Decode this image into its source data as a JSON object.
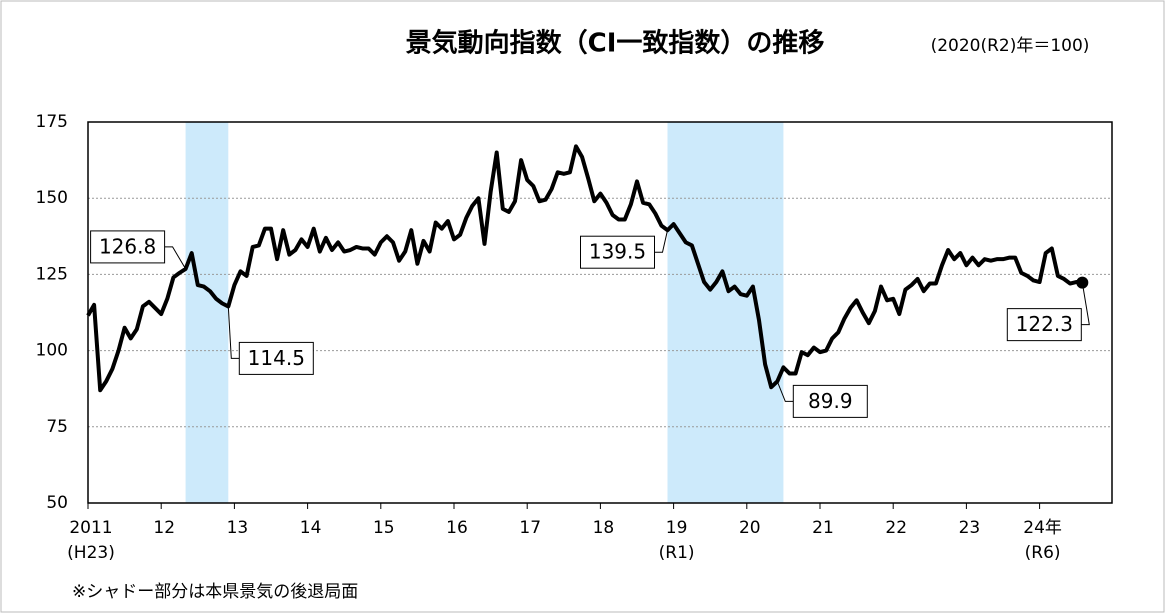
{
  "chart_data": {
    "type": "line",
    "title": "景気動向指数（CI一致指数）の推移",
    "subtitle": "(2020(R2)年＝100)",
    "note": "※シャドー部分は本県景気の後退局面",
    "categories": [
      "2011",
      null,
      null,
      null,
      null,
      null,
      null,
      null,
      null,
      null,
      null,
      null,
      "12",
      null,
      null,
      null,
      null,
      null,
      null,
      null,
      null,
      null,
      null,
      null,
      "13",
      null,
      null,
      null,
      null,
      null,
      null,
      null,
      null,
      null,
      null,
      null,
      "14",
      null,
      null,
      null,
      null,
      null,
      null,
      null,
      null,
      null,
      null,
      null,
      "15",
      null,
      null,
      null,
      null,
      null,
      null,
      null,
      null,
      null,
      null,
      null,
      "16",
      null,
      null,
      null,
      null,
      null,
      null,
      null,
      null,
      null,
      null,
      null,
      "17",
      null,
      null,
      null,
      null,
      null,
      null,
      null,
      null,
      null,
      null,
      null,
      "18",
      null,
      null,
      null,
      null,
      null,
      null,
      null,
      null,
      null,
      null,
      null,
      "19",
      null,
      null,
      null,
      null,
      null,
      null,
      null,
      null,
      null,
      null,
      null,
      "20",
      null,
      null,
      null,
      null,
      null,
      null,
      null,
      null,
      null,
      null,
      null,
      "21",
      null,
      null,
      null,
      null,
      null,
      null,
      null,
      null,
      null,
      null,
      null,
      "22",
      null,
      null,
      null,
      null,
      null,
      null,
      null,
      null,
      null,
      null,
      null,
      "23",
      null,
      null,
      null,
      null,
      null,
      null,
      null,
      null,
      null,
      null,
      null,
      "24年",
      null,
      null,
      null,
      null,
      null,
      null,
      null
    ],
    "category_sublabels": [
      {
        "index": 0,
        "label": "(H23)"
      },
      {
        "index": 96,
        "label": "(R1)"
      },
      {
        "index": 156,
        "label": "(R6)"
      }
    ],
    "series": [
      {
        "name": "CI一致指数",
        "color": "#000000",
        "values": [
          111.5,
          115,
          87,
          90,
          94,
          100,
          107.5,
          104,
          107,
          114.5,
          116,
          114,
          112,
          117,
          124,
          125.5,
          126.8,
          132,
          121.5,
          121,
          119.5,
          117,
          115.5,
          114.5,
          121.5,
          126,
          124.5,
          134,
          134.5,
          140,
          140,
          130,
          139.5,
          131.5,
          133,
          136.5,
          134,
          140,
          132.5,
          137,
          133,
          135.5,
          132.5,
          133,
          134,
          133.5,
          133.5,
          131.5,
          135.5,
          137.5,
          135.5,
          129.5,
          132.5,
          139.5,
          128.5,
          136,
          132.5,
          142,
          140,
          142.5,
          136.5,
          138,
          143.5,
          147.5,
          150,
          135,
          152,
          165,
          146.5,
          145.5,
          149,
          162.5,
          156,
          154,
          149,
          149.5,
          153,
          158.5,
          158,
          158.5,
          167,
          163.5,
          156.5,
          149,
          151.5,
          148.5,
          144.5,
          143,
          143,
          148,
          155.5,
          148.5,
          148,
          145,
          141,
          139.5,
          141.5,
          138.5,
          135.5,
          134.5,
          128.5,
          122.5,
          120,
          122.5,
          126,
          119.5,
          121,
          118.5,
          118,
          121,
          110,
          95.5,
          88,
          89.9,
          94.5,
          92.5,
          92.5,
          99.5,
          98.5,
          101,
          99.5,
          100,
          104,
          106,
          110.5,
          114,
          116.5,
          112.5,
          109,
          113,
          121,
          116.5,
          117,
          112,
          120,
          121.5,
          123.5,
          119.5,
          122,
          122,
          128,
          133,
          130,
          132,
          128,
          130.5,
          128,
          130,
          129.5,
          130,
          130,
          130.5,
          130.5,
          125.5,
          124.5,
          123,
          122.5,
          132,
          133.5,
          124.5,
          123.5,
          122,
          122.5,
          122.3
        ]
      }
    ],
    "labeled_points": [
      16,
      23,
      95,
      113,
      163
    ],
    "shaded_ranges": [
      [
        16,
        23
      ],
      [
        95,
        114
      ]
    ],
    "shade_color": "#cdeafb",
    "ylim": [
      50,
      175
    ],
    "yticks": [
      50,
      75,
      100,
      125,
      150,
      175
    ],
    "grid": true
  }
}
